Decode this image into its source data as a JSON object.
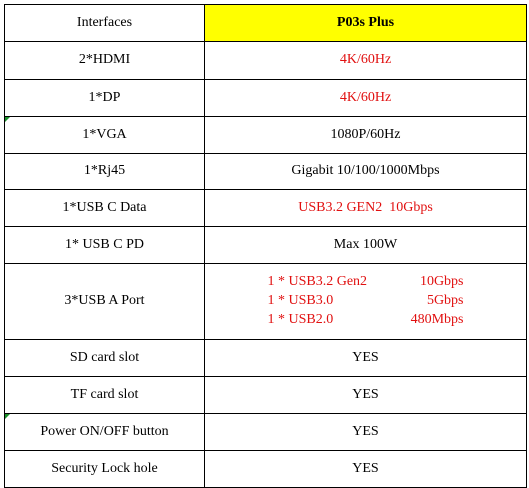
{
  "header": {
    "interfaces_label": "Interfaces",
    "model_label": "P03s Plus"
  },
  "rows": [
    {
      "iface": "2*HDMI",
      "value": "4K/60Hz"
    },
    {
      "iface": "1*DP",
      "value": "4K/60Hz"
    },
    {
      "iface": "1*VGA",
      "value": "1080P/60Hz"
    },
    {
      "iface": "1*Rj45",
      "value": "Gigabit 10/100/1000Mbps"
    },
    {
      "iface": "1*USB C Data",
      "value": "USB3.2 GEN2  10Gbps"
    },
    {
      "iface": "1* USB C PD",
      "value": "Max 100W"
    },
    {
      "iface": "3*USB A Port",
      "lines": [
        {
          "name": "1 * USB3.2 Gen2",
          "speed": "10Gbps"
        },
        {
          "name": "1 * USB3.0",
          "speed": "5Gbps"
        },
        {
          "name": "1 * USB2.0",
          "speed": "480Mbps"
        }
      ]
    },
    {
      "iface": "SD card slot",
      "value": "YES"
    },
    {
      "iface": "TF card slot",
      "value": "YES"
    },
    {
      "iface": "Power ON/OFF button",
      "value": "YES"
    },
    {
      "iface": "Security Lock hole",
      "value": "YES"
    }
  ],
  "colors": {
    "header_highlight": "#ffff00",
    "highlight_text": "#e11010",
    "cell_marker": "#1a8f2a"
  }
}
